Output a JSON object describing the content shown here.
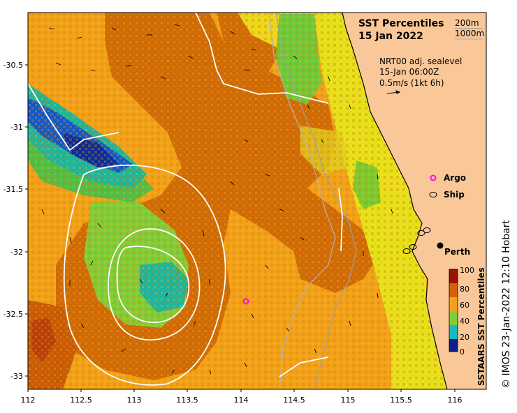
{
  "map": {
    "title_line1": "SST Percentiles",
    "title_line2": "15 Jan 2022",
    "contour_legend": [
      "200m",
      "1000m"
    ],
    "info_line1": "NRT00 adj. sealevel",
    "info_line2": "15-Jan 06:00Z",
    "info_line3": "0.5m/s (1kt 6h)",
    "legend_argo": "Argo",
    "legend_ship": "Ship",
    "city_label": "Perth",
    "credit": "© IMOS 23-Jan-2022 12:10 Hobart",
    "colorbar_title": "SSTAARS SST Percentiles",
    "colorbar_ticks": [
      "0",
      "20",
      "40",
      "60",
      "80",
      "100"
    ],
    "x_ticks": [
      "112",
      "112.5",
      "113",
      "113.5",
      "114",
      "114.5",
      "115",
      "115.5",
      "116"
    ],
    "y_ticks": [
      "-30.5",
      "-31",
      "-31.5",
      "-32",
      "-32.5",
      "-33"
    ],
    "colors": {
      "land": "#fac898",
      "ocean_base": "#f2a21a",
      "dark_orange": "#d06a06",
      "yellow": "#e6e21c",
      "green": "#5cc738",
      "teal": "#1ab7a0",
      "blue": "#1458c8",
      "argo": "#ff00ff"
    }
  }
}
